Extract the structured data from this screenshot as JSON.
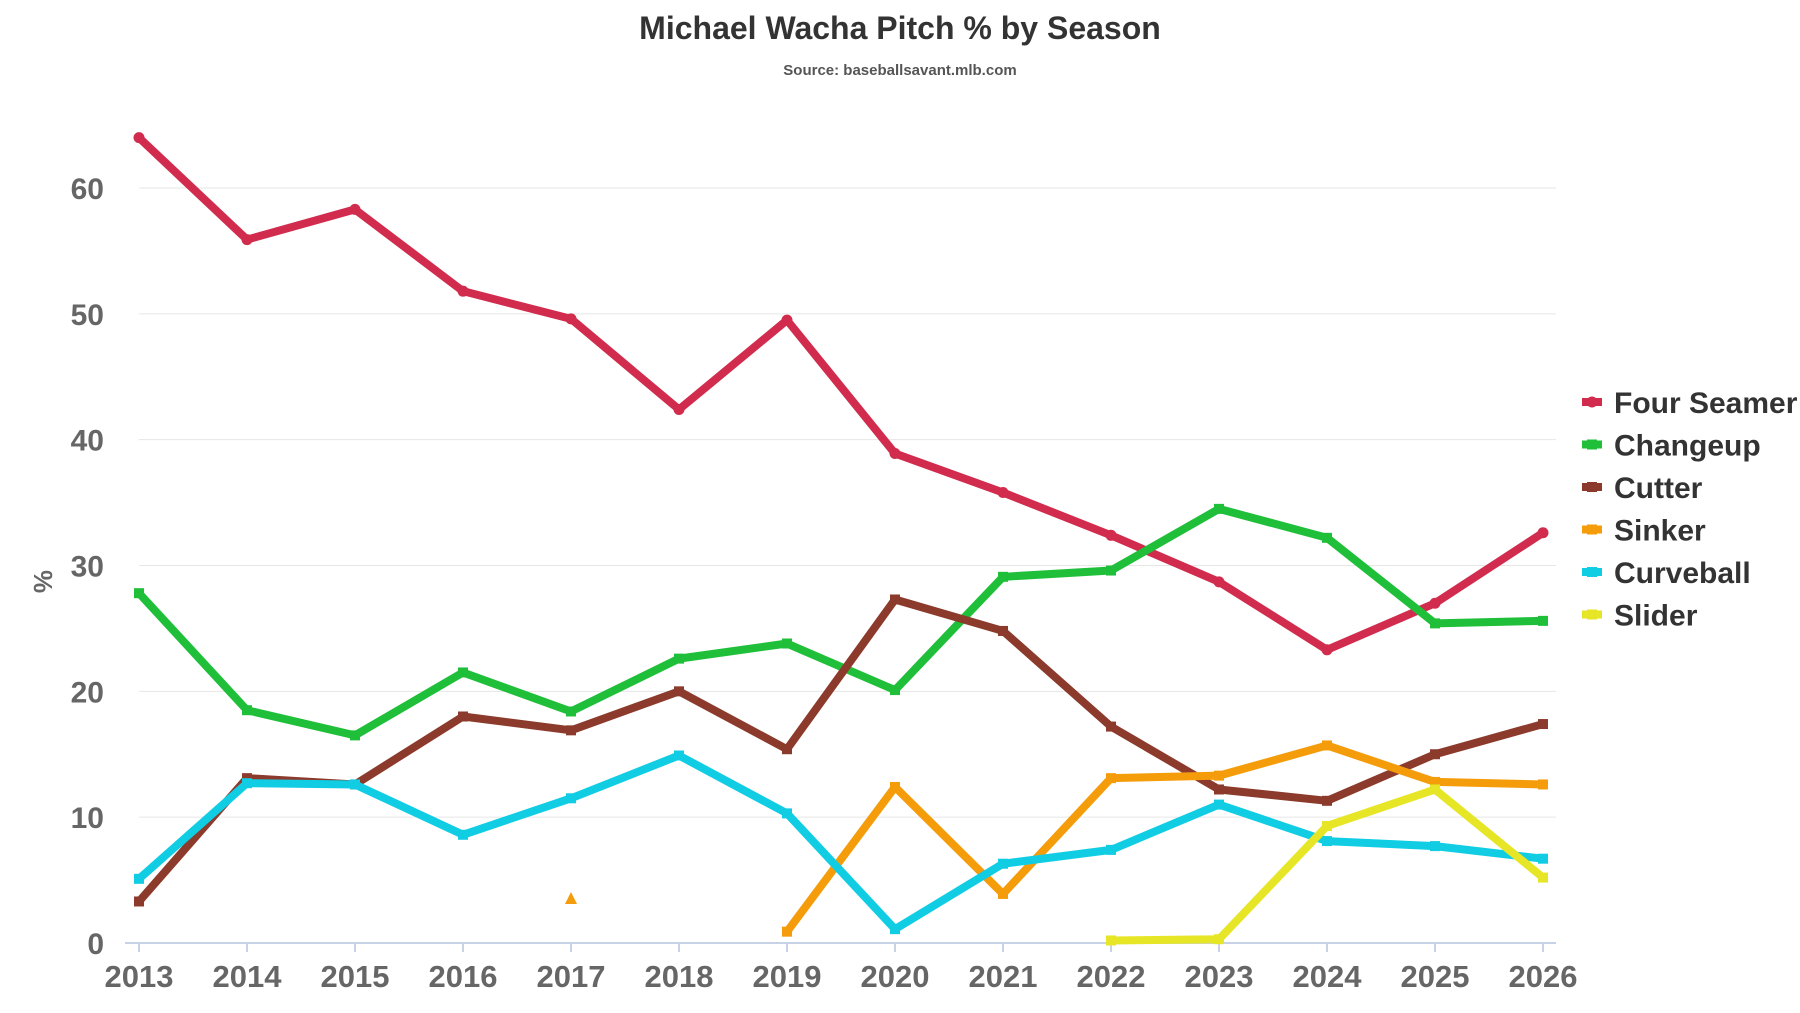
{
  "chart_data": {
    "type": "line",
    "title": "Michael Wacha Pitch % by Season",
    "subtitle": "Source: baseballsavant.mlb.com",
    "xlabel": "",
    "ylabel": "%",
    "x": [
      "2013",
      "2014",
      "2015",
      "2016",
      "2017",
      "2018",
      "2019",
      "2020",
      "2021",
      "2022",
      "2023",
      "2024",
      "2025",
      "2026"
    ],
    "ylim": [
      0,
      70
    ],
    "yticks": [
      0,
      10,
      20,
      30,
      40,
      50,
      60
    ],
    "grid": true,
    "legend_position": "right",
    "series": [
      {
        "name": "Four Seamer",
        "color": "#d12c4d",
        "values": [
          64.0,
          55.9,
          58.3,
          51.8,
          49.6,
          42.4,
          49.5,
          38.9,
          35.8,
          32.4,
          28.7,
          23.3,
          27.0,
          32.6
        ]
      },
      {
        "name": "Changeup",
        "color": "#1fbf3a",
        "values": [
          27.8,
          18.5,
          16.5,
          21.5,
          18.4,
          22.6,
          23.8,
          20.1,
          29.1,
          29.6,
          34.5,
          32.2,
          25.4,
          25.6
        ]
      },
      {
        "name": "Cutter",
        "color": "#8b3a2b",
        "values": [
          3.3,
          13.1,
          12.6,
          18.0,
          16.9,
          20.0,
          15.4,
          27.3,
          24.8,
          17.2,
          12.2,
          11.3,
          15.0,
          17.4
        ]
      },
      {
        "name": "Sinker",
        "color": "#f59c0b",
        "values": [
          null,
          null,
          null,
          null,
          3.5,
          null,
          0.9,
          12.4,
          3.9,
          13.1,
          13.3,
          15.7,
          12.8,
          12.6
        ]
      },
      {
        "name": "Curveball",
        "color": "#10cde4",
        "values": [
          5.1,
          12.7,
          12.6,
          8.6,
          11.5,
          14.9,
          10.3,
          1.1,
          6.3,
          7.4,
          11.0,
          8.1,
          7.7,
          6.7
        ]
      },
      {
        "name": "Slider",
        "color": "#e6e626",
        "values": [
          null,
          null,
          null,
          null,
          null,
          null,
          null,
          null,
          null,
          0.2,
          0.3,
          9.3,
          12.2,
          5.2
        ]
      }
    ]
  }
}
